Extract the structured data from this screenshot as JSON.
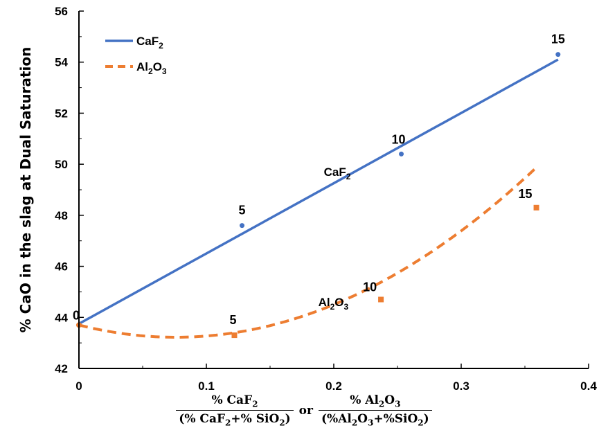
{
  "chart_data": {
    "type": "line",
    "title": "",
    "ylabel": "% CaO in the slag at Dual Saturation",
    "xlabel": {
      "frac1_num": "% CaF",
      "frac1_num_sub": "2",
      "frac1_den_a": "(% CaF",
      "frac1_den_sub1": "2",
      "frac1_den_b": "+% SiO",
      "frac1_den_sub2": "2",
      "frac1_den_c": ")",
      "or": "or",
      "frac2_num": "% Al",
      "frac2_num_sub1": "2",
      "frac2_num_mid": "O",
      "frac2_num_sub2": "3",
      "frac2_den_a": "(%Al",
      "frac2_den_sub1": "2",
      "frac2_den_b": "O",
      "frac2_den_sub2": "3",
      "frac2_den_c": "+%SiO",
      "frac2_den_sub3": "2",
      "frac2_den_d": ")"
    },
    "xlim": [
      0,
      0.4
    ],
    "ylim": [
      42,
      56
    ],
    "xticks": [
      "0",
      "0.1",
      "0.2",
      "0.3",
      "0.4"
    ],
    "yticks": [
      "42",
      "44",
      "46",
      "48",
      "50",
      "52",
      "54",
      "56"
    ],
    "legend": {
      "position": "top-left",
      "entries": [
        {
          "name": "CaF",
          "sub": "2",
          "style": "solid",
          "color": "#4472c4"
        },
        {
          "name": "Al",
          "sub1": "2",
          "mid": "O",
          "sub2": "3",
          "style": "dashed",
          "color": "#ed7d31"
        }
      ]
    },
    "series": [
      {
        "name": "CaF2",
        "color": "#4472c4",
        "points": [
          {
            "x": 0,
            "y": 43.7,
            "label": "0"
          },
          {
            "x": 0.128,
            "y": 47.6,
            "label": "5"
          },
          {
            "x": 0.253,
            "y": 50.4,
            "label": "10"
          },
          {
            "x": 0.376,
            "y": 54.3,
            "label": "15"
          }
        ],
        "fit": {
          "type": "linear",
          "x0": 0,
          "y0": 43.75,
          "x1": 0.376,
          "y1": 54.1
        },
        "curve_label": {
          "text": "CaF",
          "sub": "2",
          "x": 0.19,
          "y": 49.7
        }
      },
      {
        "name": "Al2O3",
        "color": "#ed7d31",
        "points": [
          {
            "x": 0,
            "y": 43.7,
            "label": "0"
          },
          {
            "x": 0.122,
            "y": 43.3,
            "label": "5"
          },
          {
            "x": 0.237,
            "y": 44.7,
            "label": "10"
          },
          {
            "x": 0.359,
            "y": 48.3,
            "label": "15"
          }
        ],
        "fit": {
          "type": "quadratic",
          "a": 83.0,
          "b": -12.6,
          "c": 43.7,
          "xmax": 0.359
        },
        "curve_label": {
          "text": "Al",
          "sub1": "2",
          "mid": "O",
          "sub2": "3",
          "x": 0.19,
          "y": 44.6
        }
      }
    ]
  }
}
